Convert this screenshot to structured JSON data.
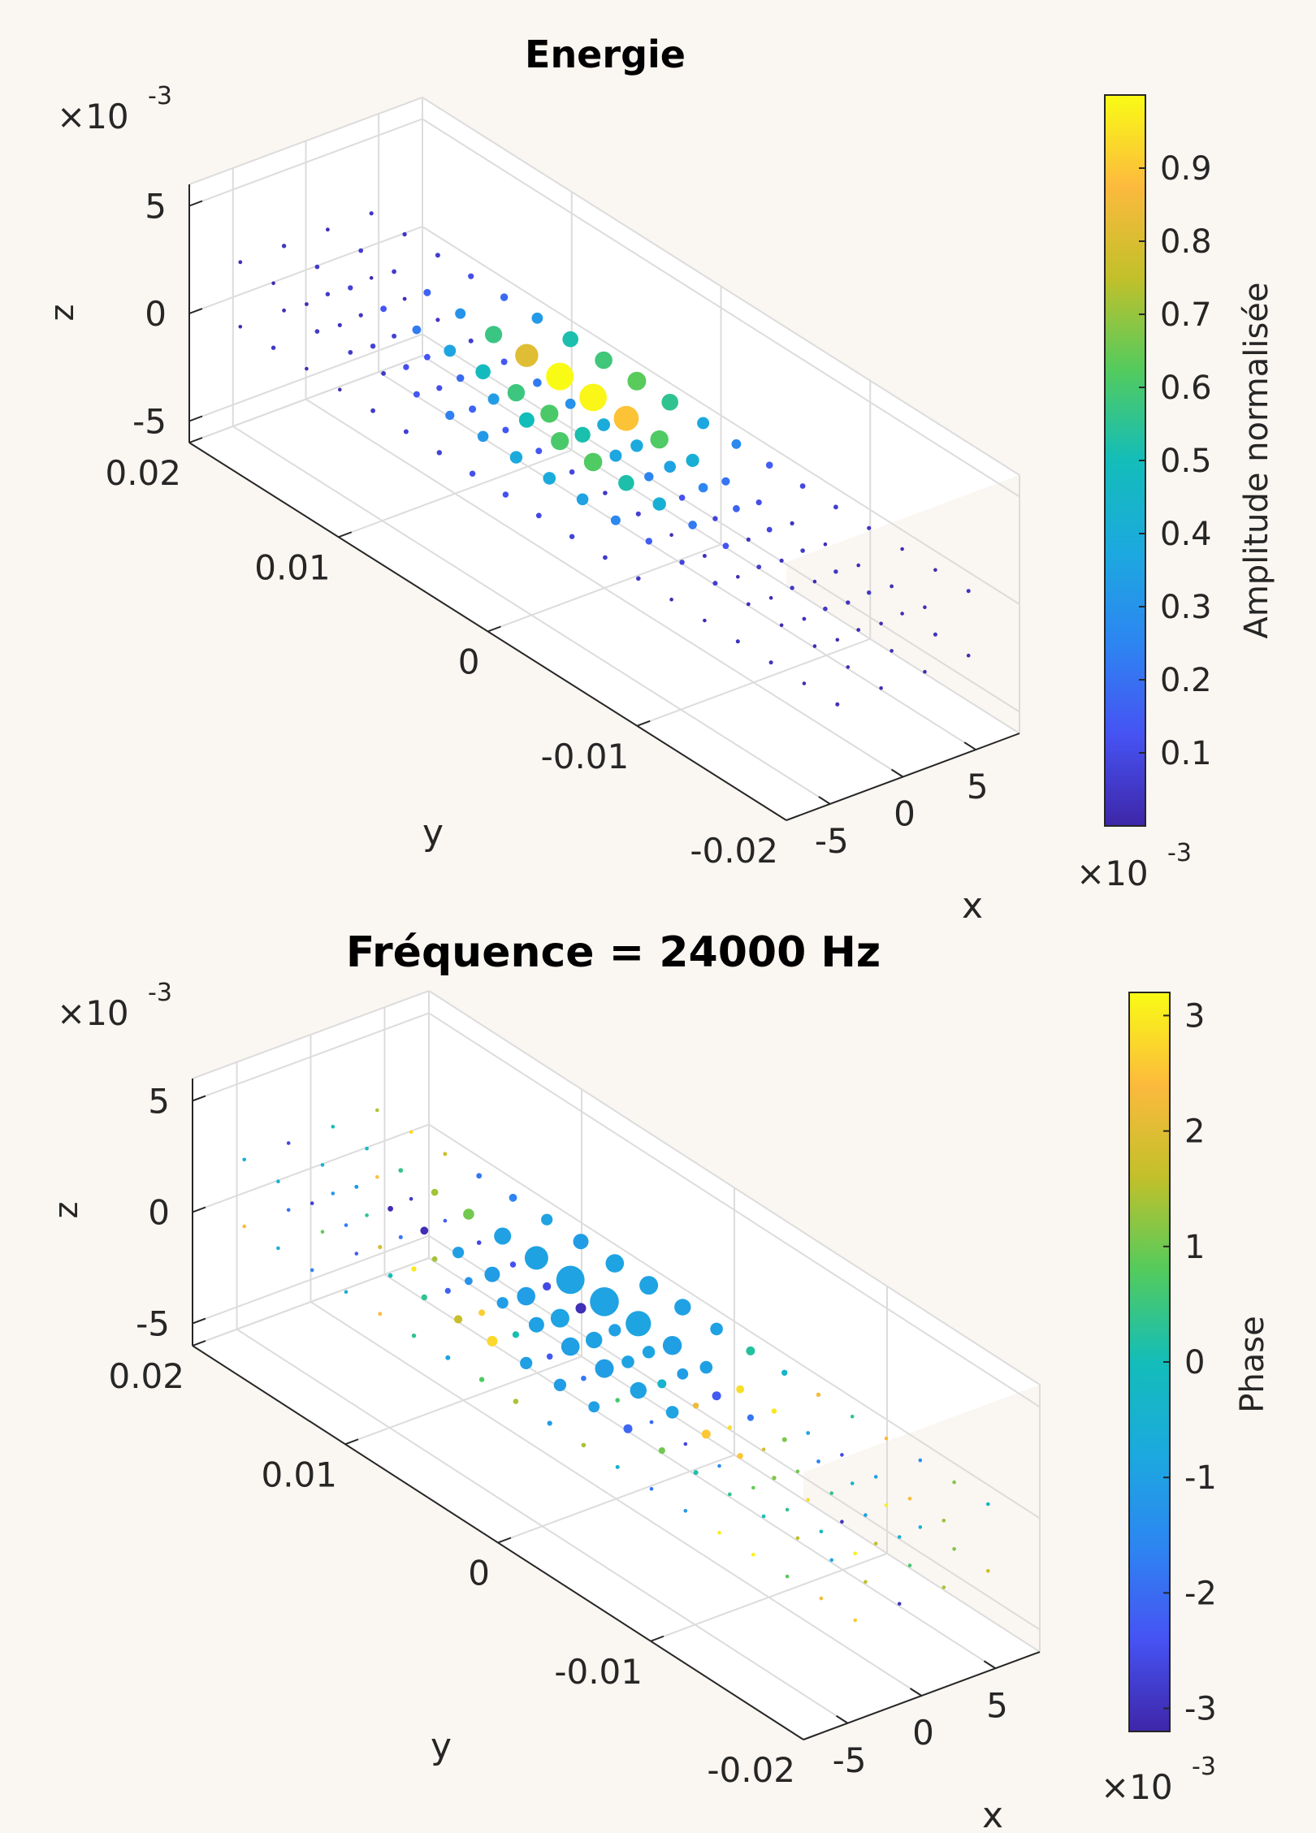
{
  "chart_data": [
    {
      "type": "scatter",
      "title": "Energie",
      "xlabel": "x",
      "ylabel": "y",
      "zlabel": "z",
      "x_ticks": [
        "-5",
        "0",
        "5"
      ],
      "y_ticks": [
        "0.02",
        "0.01",
        "0",
        "-0.01",
        "-0.02"
      ],
      "z_ticks": [
        "5",
        "0",
        "-5"
      ],
      "z_exponent": "×10",
      "x_exponent": "×10",
      "exponent_power": "-3",
      "xlim": [
        -0.008,
        0.008
      ],
      "ylim": [
        -0.02,
        0.02
      ],
      "zlim": [
        -0.006,
        0.006
      ],
      "grid": true,
      "colorbar": {
        "label": "Amplitude normalisée",
        "ticks": [
          "0.9",
          "0.8",
          "0.7",
          "0.6",
          "0.5",
          "0.4",
          "0.3",
          "0.2",
          "0.1"
        ],
        "range": [
          0.0,
          1.0
        ],
        "colormap": "parula"
      },
      "grid_points": {
        "x": [
          -0.0045,
          -0.0015,
          0.0015,
          0.0045
        ],
        "y_range": [
          -0.02,
          0.02
        ],
        "y_count": 19,
        "z": [
          -0.0015,
          0.0015
        ]
      },
      "peak": {
        "x": 0.0015,
        "y": 0.003,
        "z": 0.0015,
        "value": 1.0
      },
      "series": [
        {
          "values_description": "",
          "points": []
        }
      ]
    },
    {
      "type": "scatter",
      "title": "Fréquence = 24000 Hz",
      "xlabel": "x",
      "ylabel": "y",
      "zlabel": "z",
      "x_ticks": [
        "-5",
        "0",
        "5"
      ],
      "y_ticks": [
        "0.02",
        "0.01",
        "0",
        "-0.01",
        "-0.02"
      ],
      "z_ticks": [
        "5",
        "0",
        "-5"
      ],
      "z_exponent": "×10",
      "x_exponent": "×10",
      "exponent_power": "-3",
      "xlim": [
        -0.008,
        0.008
      ],
      "ylim": [
        -0.02,
        0.02
      ],
      "zlim": [
        -0.006,
        0.006
      ],
      "grid": true,
      "colorbar": {
        "label": "Phase",
        "ticks": [
          "3",
          "2",
          "1",
          "0",
          "-1",
          "-2",
          "-3"
        ],
        "range": [
          -3.2,
          3.2
        ],
        "colormap": "parula"
      },
      "dominant_phase": -1.0
    }
  ],
  "colors": {
    "background": "#faf6f1",
    "axes_background": "#ffffff",
    "grid": "#dcdcdc",
    "axis_line": "#262626"
  }
}
